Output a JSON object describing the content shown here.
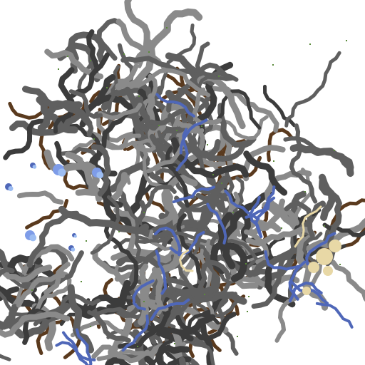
{
  "scene": {
    "background": "#ffffff",
    "colors": {
      "tunnel_dark": "#3c3c3c",
      "tunnel_mid": "#5f5f5f",
      "tunnel_light": "#8a8a8a",
      "water": "#4f67b8",
      "water_light": "#7e9ce8",
      "ice": "#9dbdf2",
      "dirt": "#5a3a1e",
      "sand": "#e8d8a6",
      "moss": "#5a8a3a"
    }
  }
}
